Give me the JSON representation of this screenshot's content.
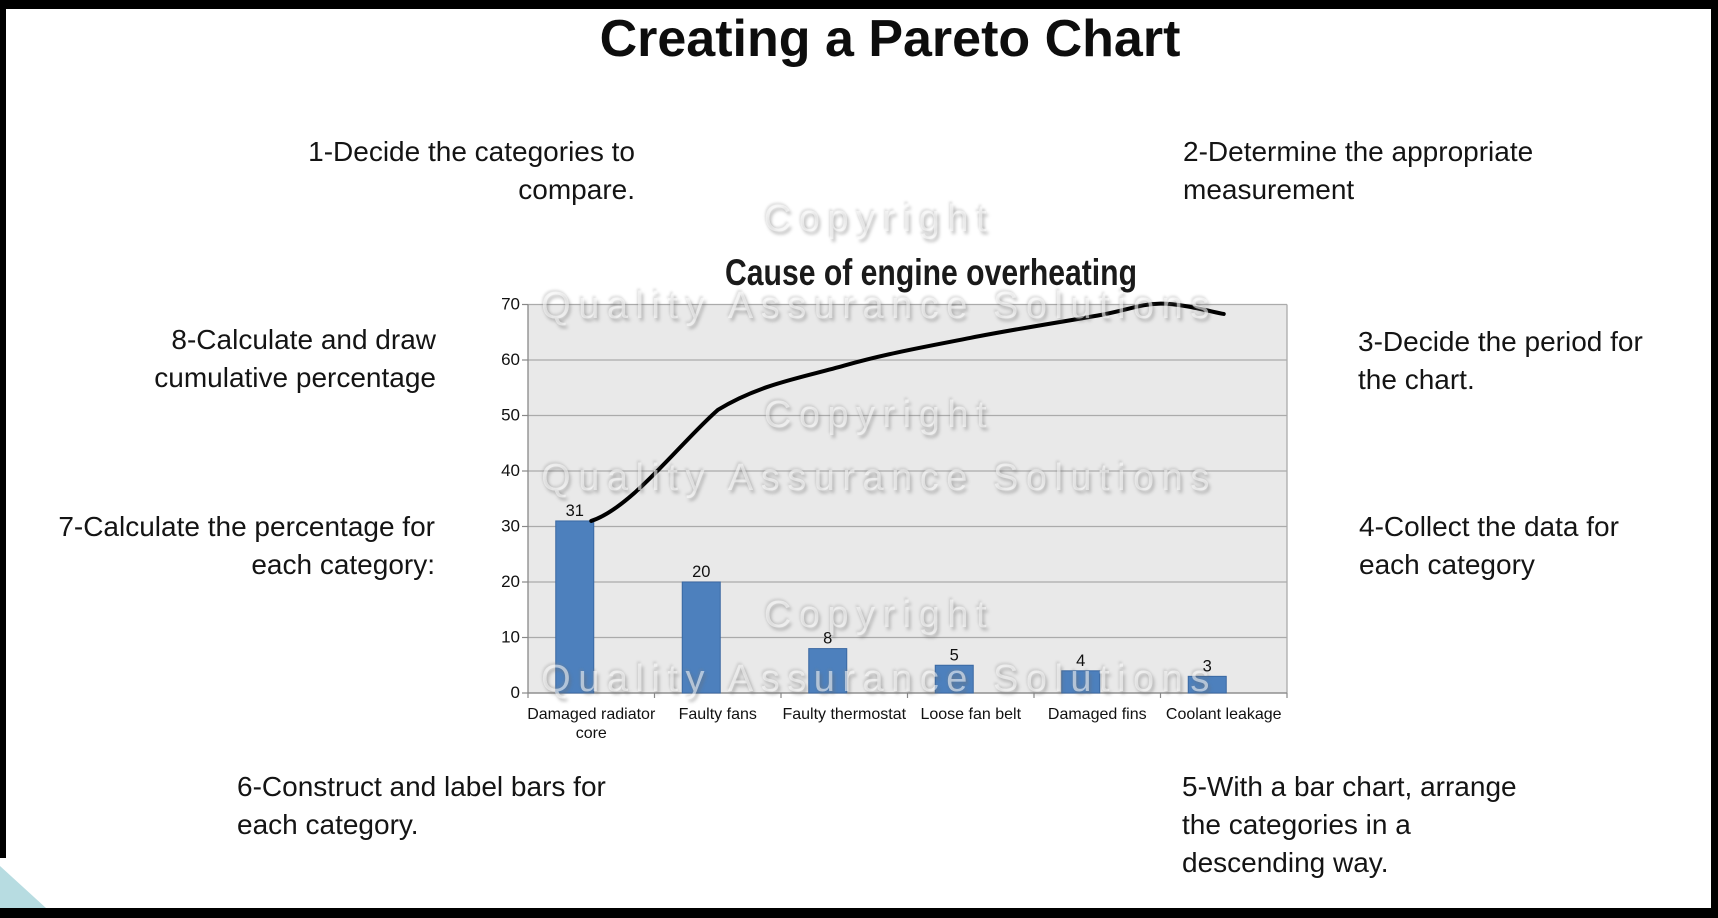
{
  "slide": {
    "title": "Creating a Pareto Chart",
    "steps": [
      {
        "id": "1",
        "text": "1-Decide the categories to\ncompare."
      },
      {
        "id": "2",
        "text": "2-Determine the appropriate\nmeasurement"
      },
      {
        "id": "3",
        "text": "3-Decide the period for\nthe chart."
      },
      {
        "id": "4",
        "text": "4-Collect the data for\neach category"
      },
      {
        "id": "5",
        "text": "5-With a bar chart, arrange\nthe categories in a\ndescending way."
      },
      {
        "id": "6",
        "text": "6-Construct and label bars for\neach category."
      },
      {
        "id": "7",
        "text": "7-Calculate the percentage for\neach category:"
      },
      {
        "id": "8",
        "text": "8-Calculate and draw\ncumulative percentage"
      }
    ],
    "watermark": {
      "line1": "Copyright",
      "line2": "Quality Assurance Solutions"
    },
    "accent_triangle_color": "#b7dce1"
  },
  "chart_data": {
    "type": "bar",
    "subtype": "pareto (bars + smoothed cumulative line)",
    "title": "Cause of engine overheating",
    "categories": [
      "Damaged radiator core",
      "Faulty fans",
      "Faulty thermostat",
      "Loose fan belt",
      "Damaged fins",
      "Coolant leakage"
    ],
    "values": [
      31,
      20,
      8,
      5,
      4,
      3
    ],
    "cumulative": [
      31,
      51,
      59,
      64,
      68,
      71
    ],
    "ylim": [
      0,
      70
    ],
    "ytick_step": 10,
    "grid": true,
    "legend": false,
    "bar_color": "#4d80bd",
    "bar_edge_color": "#3a68a2",
    "line_color": "#000000",
    "plot_bg": "#e9e9e9",
    "grid_color": "#ababab"
  }
}
